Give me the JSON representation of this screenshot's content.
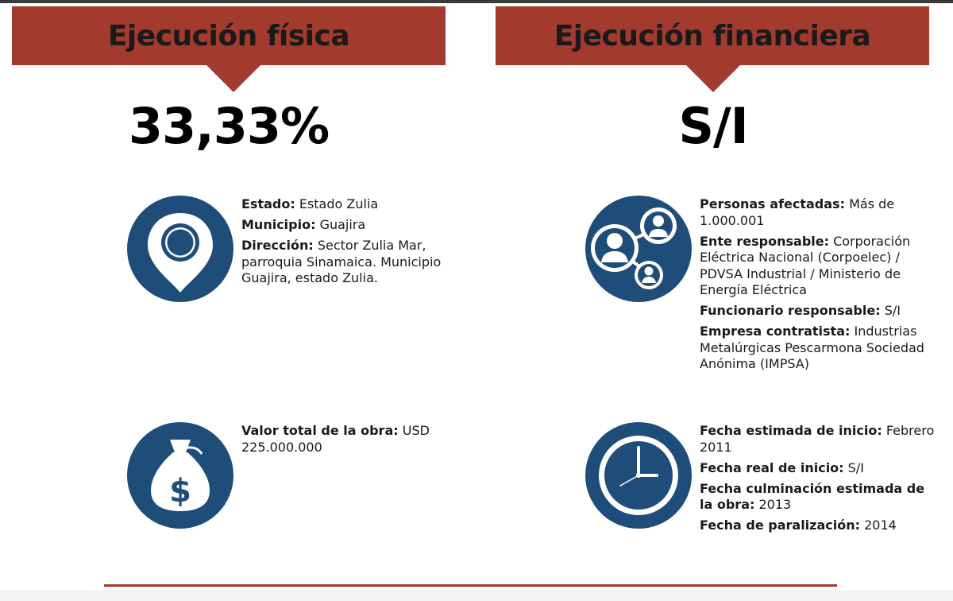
{
  "header_left": {
    "title": "Ejecución física",
    "value": "33,33%"
  },
  "header_right": {
    "title": "Ejecución financiera",
    "value": "S/I"
  },
  "location": {
    "icon": "map-pin-icon",
    "estado_label": "Estado:",
    "estado_value": " Estado Zulia",
    "municipio_label": "Municipio:",
    "municipio_value": " Guajira",
    "direccion_label": "Dirección:",
    "direccion_value": " Sector Zulia Mar, parroquia Sinamaica. Municipio Guajira, estado Zulia."
  },
  "people": {
    "icon": "people-network-icon",
    "afectadas_label": "Personas afectadas:",
    "afectadas_value": " Más de 1.000.001",
    "ente_label": "Ente responsable:",
    "ente_value": " Corporación Eléctrica Nacional (Corpoelec) / PDVSA Industrial / Ministerio de Energía Eléctrica",
    "funcionario_label": "Funcionario responsable:",
    "funcionario_value": " S/I",
    "empresa_label": "Empresa contratista:",
    "empresa_value": " Industrias Metalúrgicas Pescarmona Sociedad Anónima (IMPSA)"
  },
  "money": {
    "icon": "money-bag-icon",
    "valor_label": "Valor total de la obra:",
    "valor_value": " USD 225.000.000"
  },
  "dates": {
    "icon": "clock-icon",
    "inicio_est_label": "Fecha estimada de inicio:",
    "inicio_est_value": " Febrero 2011",
    "inicio_real_label": "Fecha real de inicio:",
    "inicio_real_value": " S/I",
    "culminacion_label": "Fecha culminación estimada de la obra:",
    "culminacion_value": " 2013",
    "paralizacion_label": "Fecha de paralización:",
    "paralizacion_value": " 2014"
  },
  "colors": {
    "banner": "#a33a2e",
    "icon_bg": "#1f4d7a",
    "divider": "#a33a2e"
  }
}
